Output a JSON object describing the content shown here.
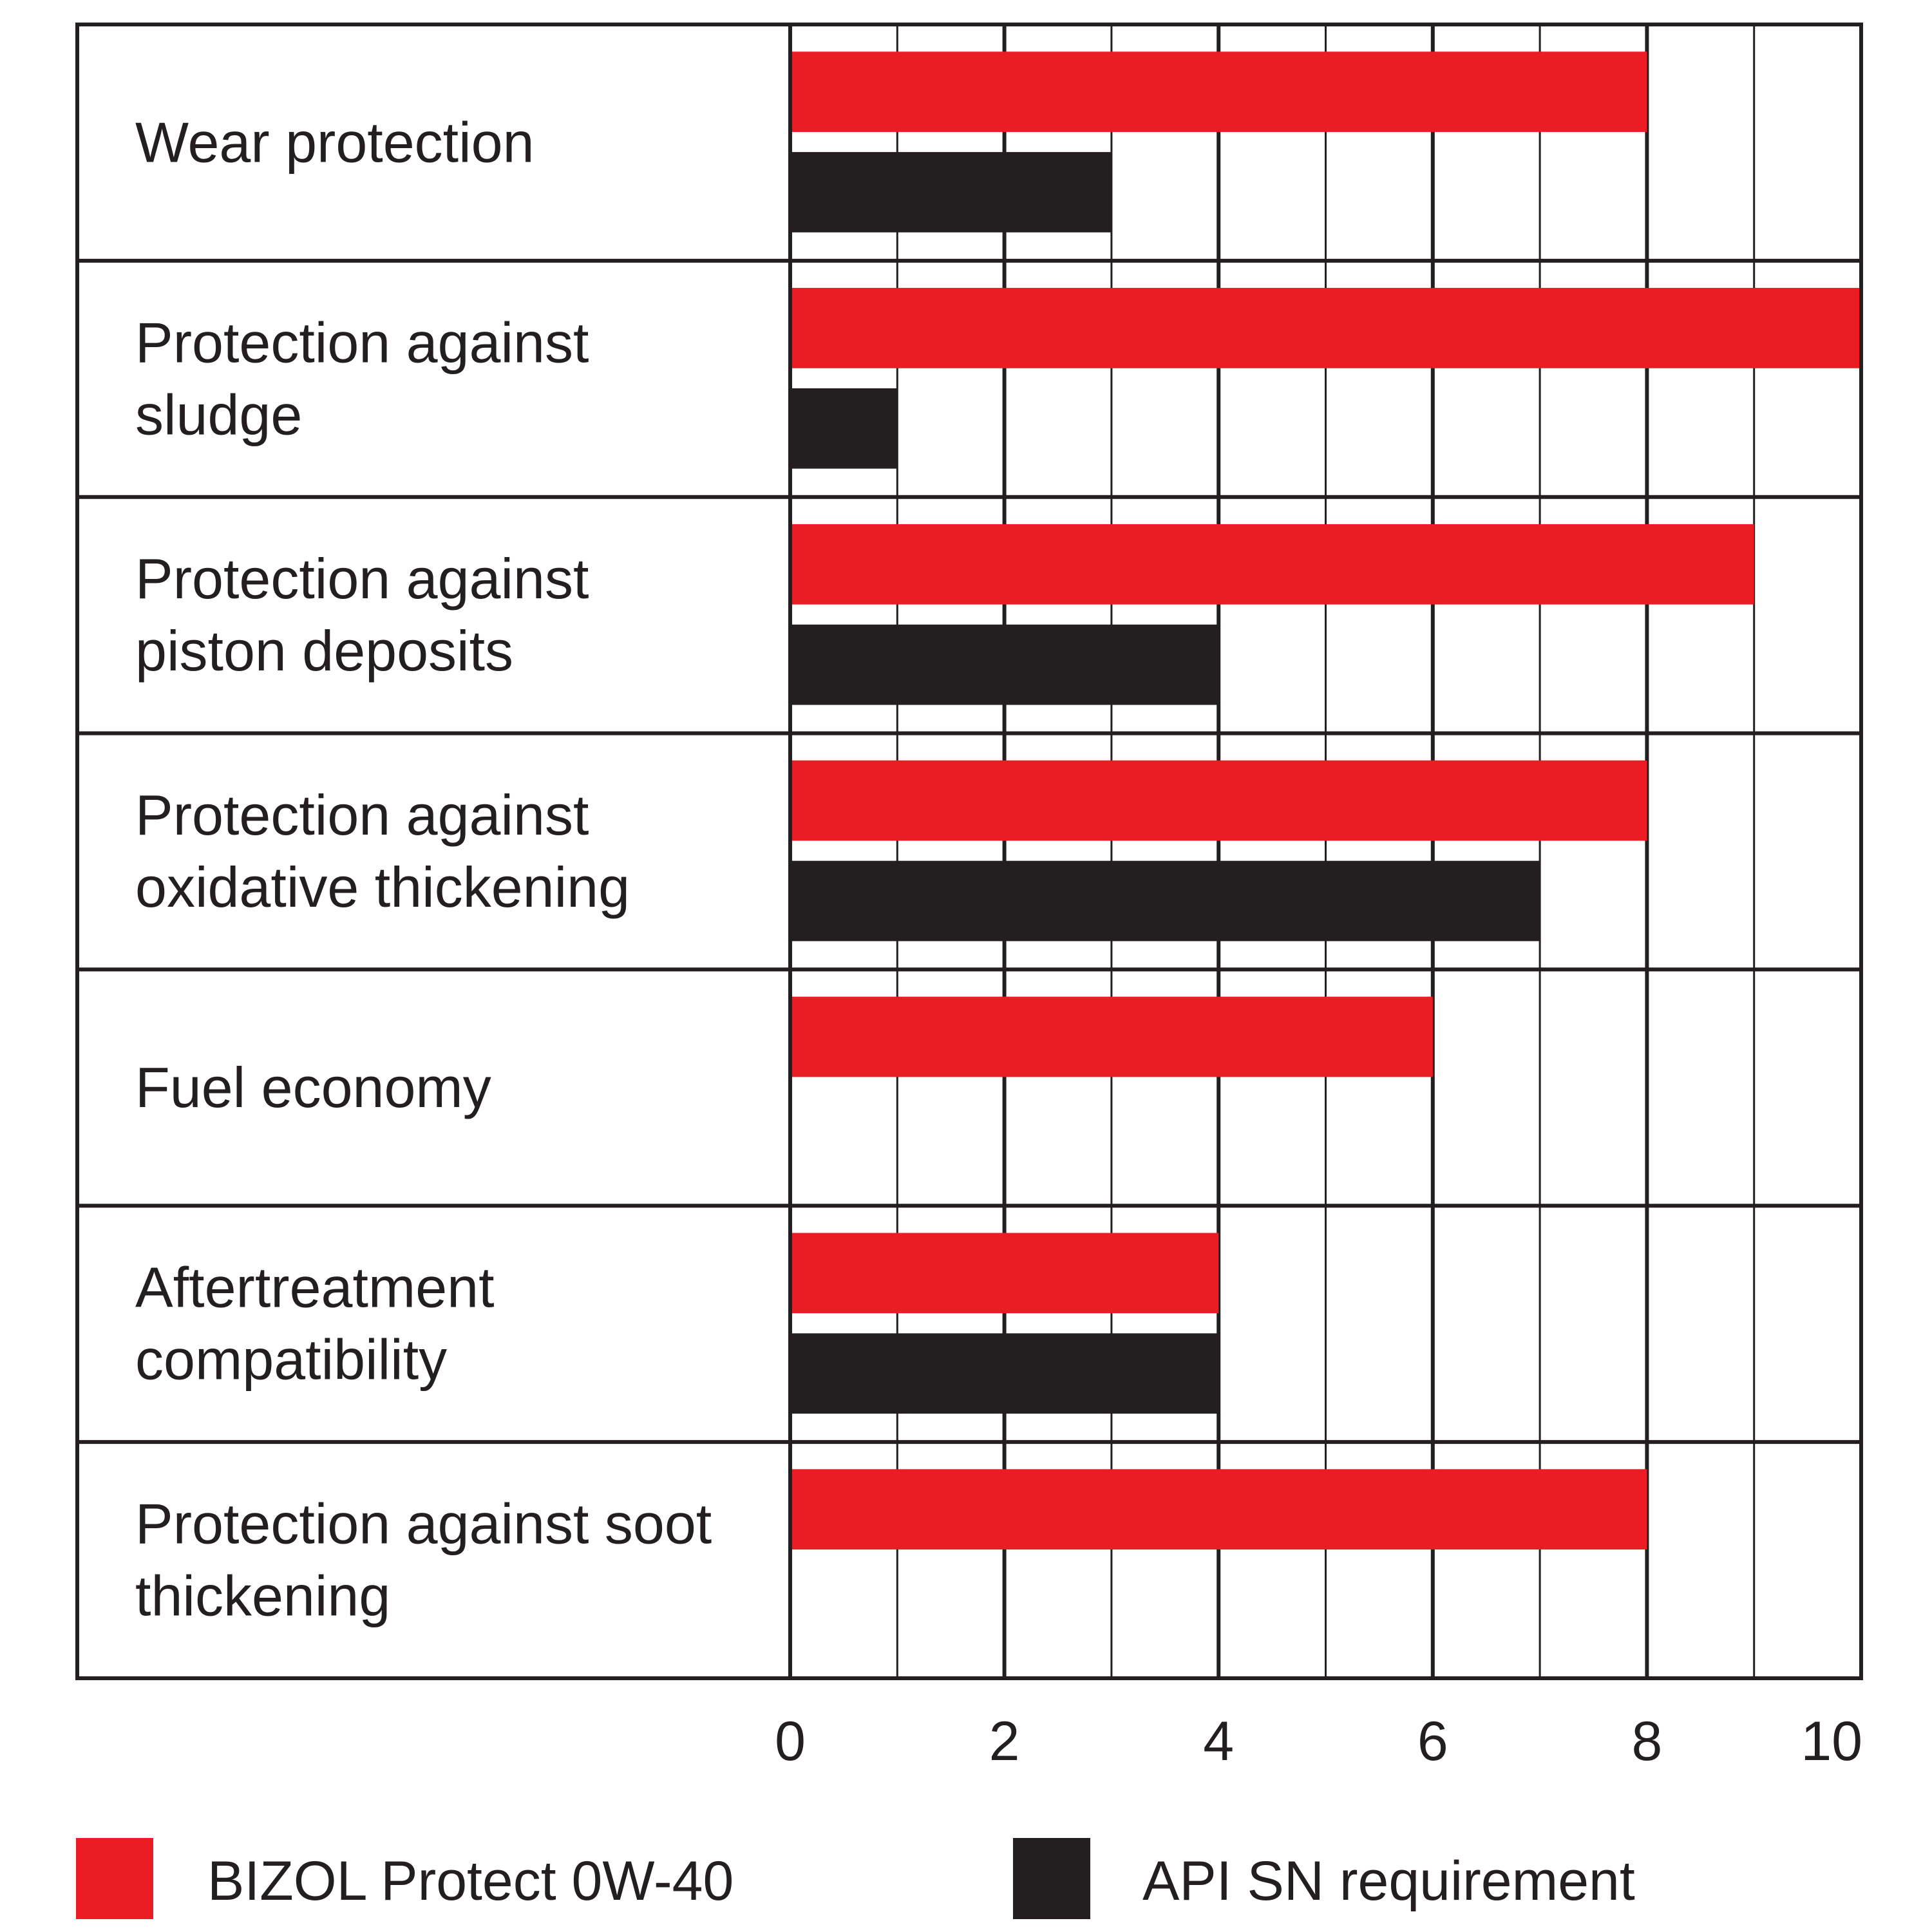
{
  "chart_data": {
    "type": "bar",
    "orientation": "horizontal",
    "categories": [
      [
        "Wear protection"
      ],
      [
        "Protection against",
        "sludge"
      ],
      [
        "Protection against",
        "piston deposits"
      ],
      [
        "Protection against",
        "oxidative thickening"
      ],
      [
        "Fuel economy"
      ],
      [
        "Aftertreatment",
        "compatibility"
      ],
      [
        "Protection against soot",
        "thickening"
      ]
    ],
    "series": [
      {
        "name": "BIZOL Protect 0W-40",
        "color": "#ec1c24",
        "values": [
          8,
          10,
          9,
          8,
          6,
          4,
          8
        ]
      },
      {
        "name": "API SN requirement",
        "color": "#231f20",
        "values": [
          3,
          1,
          4,
          7,
          0,
          4,
          0
        ]
      }
    ],
    "xlim": [
      0,
      10
    ],
    "xticks": [
      "0",
      "2",
      "4",
      "6",
      "8",
      "10"
    ],
    "xlabel": "",
    "ylabel": "",
    "grid": "vertical lines at every unit",
    "legend_position": "bottom"
  }
}
